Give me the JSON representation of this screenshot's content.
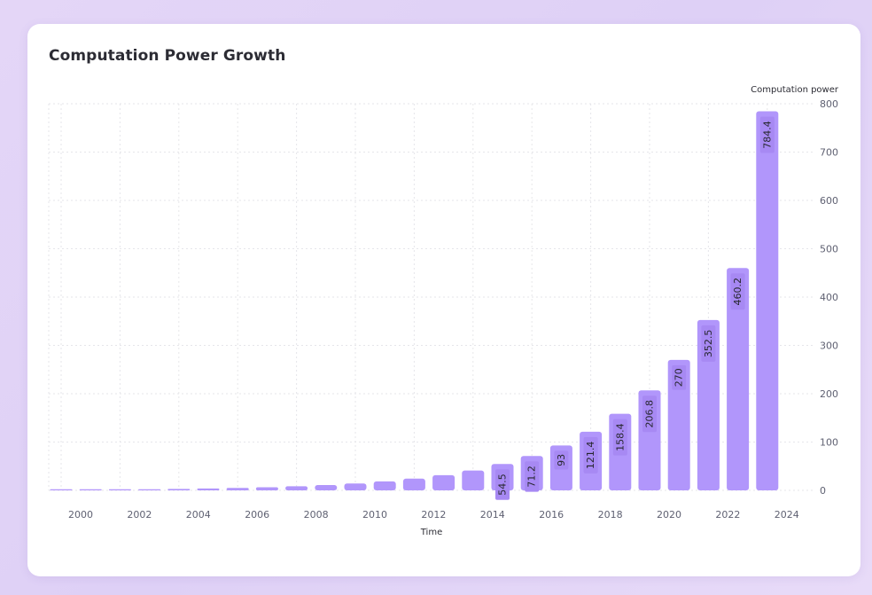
{
  "chart_data": {
    "type": "bar",
    "title": "Computation Power Growth",
    "xlabel": "Time",
    "ylabel": "Computation power",
    "ylim": [
      0,
      800
    ],
    "yticks": [
      0,
      100,
      200,
      300,
      400,
      500,
      600,
      700,
      800
    ],
    "x_tick_labels": [
      "2000",
      "2002",
      "2004",
      "2006",
      "2008",
      "2010",
      "2012",
      "2014",
      "2016",
      "2018",
      "2020",
      "2022",
      "2024"
    ],
    "y_axis_side": "right",
    "grid": true,
    "legend": false,
    "categories": [
      "2000",
      "2001",
      "2002",
      "2003",
      "2004",
      "2005",
      "2006",
      "2007",
      "2008",
      "2009",
      "2010",
      "2011",
      "2012",
      "2013",
      "2014",
      "2015",
      "2016",
      "2017",
      "2018",
      "2019",
      "2020",
      "2021",
      "2022",
      "2023",
      "2024"
    ],
    "values": [
      1,
      1.3,
      1.7,
      2.2,
      2.9,
      3.8,
      5,
      6.5,
      8.5,
      11,
      14.3,
      18.6,
      24.2,
      31.5,
      41,
      54.5,
      71.2,
      93,
      121.4,
      158.4,
      206.8,
      270,
      352.5,
      460.2,
      784.4
    ],
    "data_labels": [
      "",
      "",
      "",
      "",
      "",
      "",
      "",
      "",
      "",
      "",
      "",
      "",
      "",
      "",
      "",
      "54.5",
      "71.2",
      "93",
      "121.4",
      "158.4",
      "206.8",
      "270",
      "352.5",
      "460.2",
      "784.4"
    ],
    "colors": {
      "bar": "#b196fb",
      "label_background": "#a789f3"
    }
  }
}
